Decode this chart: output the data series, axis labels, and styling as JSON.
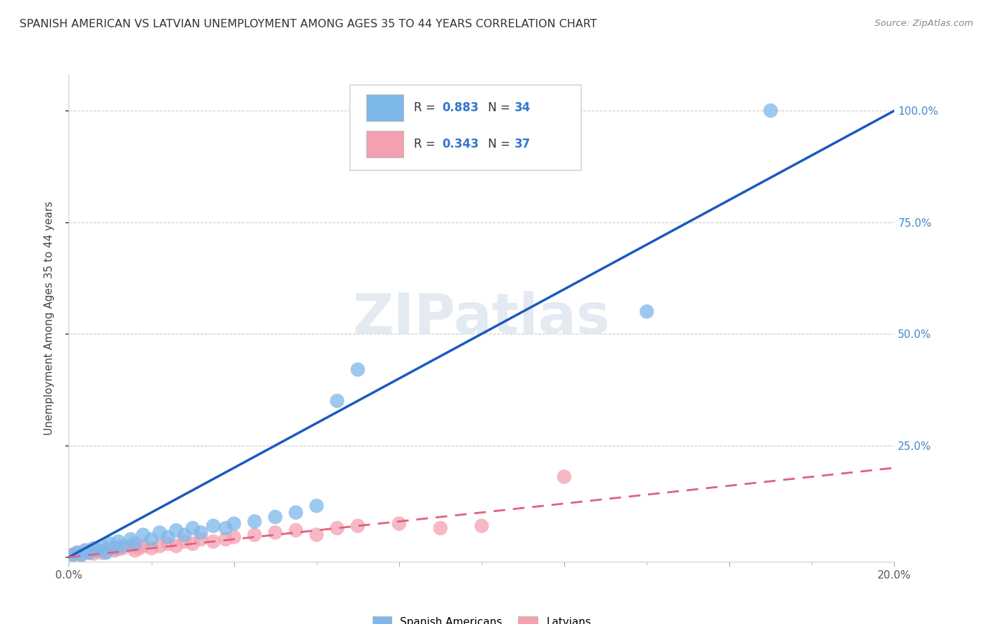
{
  "title": "SPANISH AMERICAN VS LATVIAN UNEMPLOYMENT AMONG AGES 35 TO 44 YEARS CORRELATION CHART",
  "source": "Source: ZipAtlas.com",
  "ylabel": "Unemployment Among Ages 35 to 44 years",
  "xlim": [
    0.0,
    0.2
  ],
  "ylim": [
    -0.01,
    1.08
  ],
  "blue_R": 0.883,
  "blue_N": 34,
  "pink_R": 0.343,
  "pink_N": 37,
  "blue_color": "#7eb8ea",
  "pink_color": "#f4a0b0",
  "blue_line_color": "#1a5abf",
  "pink_line_color": "#e06080",
  "watermark": "ZIPatlas",
  "legend_label_blue": "Spanish Americans",
  "legend_label_pink": "Latvians",
  "blue_scatter_x": [
    0.001,
    0.002,
    0.003,
    0.004,
    0.005,
    0.006,
    0.007,
    0.008,
    0.009,
    0.01,
    0.011,
    0.012,
    0.013,
    0.015,
    0.016,
    0.018,
    0.02,
    0.022,
    0.024,
    0.026,
    0.028,
    0.03,
    0.032,
    0.035,
    0.038,
    0.04,
    0.045,
    0.05,
    0.055,
    0.06,
    0.065,
    0.07,
    0.14,
    0.17
  ],
  "blue_scatter_y": [
    0.005,
    0.01,
    0.005,
    0.015,
    0.01,
    0.02,
    0.015,
    0.025,
    0.01,
    0.03,
    0.02,
    0.035,
    0.025,
    0.04,
    0.03,
    0.05,
    0.04,
    0.055,
    0.045,
    0.06,
    0.05,
    0.065,
    0.055,
    0.07,
    0.065,
    0.075,
    0.08,
    0.09,
    0.1,
    0.115,
    0.35,
    0.42,
    0.55,
    1.0
  ],
  "pink_scatter_x": [
    0.001,
    0.002,
    0.003,
    0.004,
    0.005,
    0.006,
    0.007,
    0.008,
    0.009,
    0.01,
    0.011,
    0.012,
    0.013,
    0.015,
    0.016,
    0.017,
    0.018,
    0.02,
    0.022,
    0.024,
    0.026,
    0.028,
    0.03,
    0.032,
    0.035,
    0.038,
    0.04,
    0.045,
    0.05,
    0.055,
    0.06,
    0.065,
    0.07,
    0.08,
    0.09,
    0.1,
    0.12
  ],
  "pink_scatter_y": [
    0.005,
    0.01,
    0.005,
    0.015,
    0.01,
    0.008,
    0.015,
    0.01,
    0.012,
    0.02,
    0.015,
    0.018,
    0.02,
    0.025,
    0.015,
    0.02,
    0.025,
    0.02,
    0.025,
    0.03,
    0.025,
    0.035,
    0.03,
    0.04,
    0.035,
    0.04,
    0.045,
    0.05,
    0.055,
    0.06,
    0.05,
    0.065,
    0.07,
    0.075,
    0.065,
    0.07,
    0.18
  ],
  "blue_line_x": [
    0.0,
    0.2
  ],
  "blue_line_y": [
    0.0,
    1.0
  ],
  "pink_line_x": [
    0.0,
    0.2
  ],
  "pink_line_y": [
    0.0,
    0.2
  ]
}
